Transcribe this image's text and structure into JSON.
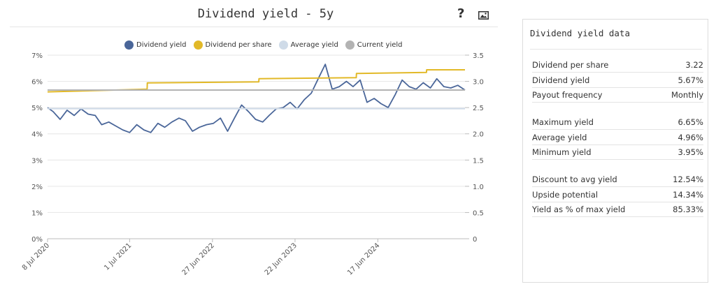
{
  "chart": {
    "title": "Dividend yield - 5y",
    "help_icon": "question-mark-icon",
    "image_icon": "image-icon"
  },
  "legend": [
    {
      "label": "Dividend yield",
      "color": "#4a6699"
    },
    {
      "label": "Dividend per share",
      "color": "#e2b928"
    },
    {
      "label": "Average yield",
      "color": "#cfdbe8"
    },
    {
      "label": "Current yield",
      "color": "#b3b3b3"
    }
  ],
  "chart_data": {
    "type": "line",
    "title": "Dividend yield - 5y",
    "x_type": "date",
    "x_range": [
      "2020-07-08",
      "2025-07-02"
    ],
    "x_ticks": [
      "8 Jul 2020",
      "1 Jul 2021",
      "27 Jun 2022",
      "22 Jun 2023",
      "17 Jun 2024"
    ],
    "x_tick_dates": [
      "2020-07-08",
      "2021-07-01",
      "2022-06-27",
      "2023-06-22",
      "2024-06-17"
    ],
    "y_left": {
      "min": 0,
      "max": 7,
      "ticks": [
        "0%",
        "1%",
        "2%",
        "3%",
        "4%",
        "5%",
        "6%",
        "7%"
      ]
    },
    "y_right": {
      "min": 0,
      "max": 3.5,
      "ticks": [
        "0",
        "0.5",
        "1.0",
        "1.5",
        "2.0",
        "2.5",
        "3.0",
        "3.5"
      ]
    },
    "grid": true,
    "legend_position": "top",
    "series": [
      {
        "name": "Dividend yield",
        "axis": "left",
        "color": "#4a6699",
        "unit": "%",
        "points": [
          [
            "2020-07-08",
            5.0
          ],
          [
            "2020-08-01",
            4.85
          ],
          [
            "2020-09-01",
            4.55
          ],
          [
            "2020-10-01",
            4.9
          ],
          [
            "2020-11-01",
            4.7
          ],
          [
            "2020-12-01",
            4.95
          ],
          [
            "2021-01-01",
            4.75
          ],
          [
            "2021-02-01",
            4.7
          ],
          [
            "2021-03-01",
            4.35
          ],
          [
            "2021-04-01",
            4.45
          ],
          [
            "2021-05-01",
            4.3
          ],
          [
            "2021-06-01",
            4.15
          ],
          [
            "2021-07-01",
            4.05
          ],
          [
            "2021-08-01",
            4.35
          ],
          [
            "2021-09-01",
            4.15
          ],
          [
            "2021-10-01",
            4.05
          ],
          [
            "2021-11-01",
            4.4
          ],
          [
            "2021-12-01",
            4.25
          ],
          [
            "2022-01-01",
            4.45
          ],
          [
            "2022-02-01",
            4.6
          ],
          [
            "2022-03-01",
            4.5
          ],
          [
            "2022-04-01",
            4.1
          ],
          [
            "2022-05-01",
            4.25
          ],
          [
            "2022-06-01",
            4.35
          ],
          [
            "2022-07-01",
            4.4
          ],
          [
            "2022-08-01",
            4.6
          ],
          [
            "2022-09-01",
            4.1
          ],
          [
            "2022-10-01",
            4.6
          ],
          [
            "2022-11-01",
            5.1
          ],
          [
            "2022-12-01",
            4.85
          ],
          [
            "2023-01-01",
            4.55
          ],
          [
            "2023-02-01",
            4.45
          ],
          [
            "2023-03-01",
            4.7
          ],
          [
            "2023-04-01",
            4.95
          ],
          [
            "2023-05-01",
            5.0
          ],
          [
            "2023-06-01",
            5.2
          ],
          [
            "2023-07-01",
            4.95
          ],
          [
            "2023-08-01",
            5.3
          ],
          [
            "2023-09-01",
            5.55
          ],
          [
            "2023-10-01",
            6.1
          ],
          [
            "2023-11-01",
            6.65
          ],
          [
            "2023-12-01",
            5.7
          ],
          [
            "2024-01-01",
            5.8
          ],
          [
            "2024-02-01",
            6.0
          ],
          [
            "2024-03-01",
            5.8
          ],
          [
            "2024-04-01",
            6.05
          ],
          [
            "2024-05-01",
            5.2
          ],
          [
            "2024-06-01",
            5.35
          ],
          [
            "2024-07-01",
            5.15
          ],
          [
            "2024-08-01",
            5.0
          ],
          [
            "2024-09-01",
            5.5
          ],
          [
            "2024-10-01",
            6.05
          ],
          [
            "2024-11-01",
            5.8
          ],
          [
            "2024-12-01",
            5.7
          ],
          [
            "2025-01-01",
            5.95
          ],
          [
            "2025-02-01",
            5.75
          ],
          [
            "2025-03-01",
            6.1
          ],
          [
            "2025-04-01",
            5.8
          ],
          [
            "2025-05-01",
            5.75
          ],
          [
            "2025-06-01",
            5.85
          ],
          [
            "2025-07-02",
            5.67
          ]
        ]
      },
      {
        "name": "Dividend per share",
        "axis": "right",
        "color": "#e2b928",
        "points": [
          [
            "2020-07-08",
            2.8
          ],
          [
            "2021-09-15",
            2.85
          ],
          [
            "2021-09-16",
            2.97
          ],
          [
            "2023-01-15",
            2.99
          ],
          [
            "2023-01-16",
            3.05
          ],
          [
            "2024-03-15",
            3.07
          ],
          [
            "2024-03-16",
            3.15
          ],
          [
            "2025-01-15",
            3.17
          ],
          [
            "2025-01-16",
            3.22
          ],
          [
            "2025-07-02",
            3.22
          ]
        ]
      },
      {
        "name": "Average yield",
        "axis": "left",
        "color": "#cfdbe8",
        "value": 4.96
      },
      {
        "name": "Current yield",
        "axis": "left",
        "color": "#b3b3b3",
        "value": 5.67
      }
    ]
  },
  "panel": {
    "title": "Dividend yield data",
    "groups": [
      [
        {
          "label": "Dividend per share",
          "value": "3.22"
        },
        {
          "label": "Dividend yield",
          "value": "5.67%"
        },
        {
          "label": "Payout frequency",
          "value": "Monthly"
        }
      ],
      [
        {
          "label": "Maximum yield",
          "value": "6.65%"
        },
        {
          "label": "Average yield",
          "value": "4.96%"
        },
        {
          "label": "Minimum yield",
          "value": "3.95%"
        }
      ],
      [
        {
          "label": "Discount to avg yield",
          "value": "12.54%"
        },
        {
          "label": "Upside potential",
          "value": "14.34%"
        },
        {
          "label": "Yield as % of max yield",
          "value": "85.33%"
        }
      ]
    ]
  }
}
